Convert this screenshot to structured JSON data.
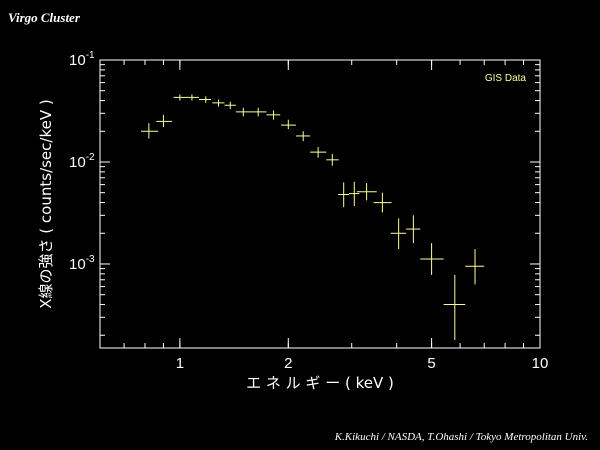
{
  "title": "Virgo Cluster",
  "credit": "K.Kikuchi / NASDA,   T.Ohashi / Tokyo Metropolitan Univ.",
  "colors": {
    "background": "#000000",
    "axes": "#ffffff",
    "data": "#ffff99"
  },
  "chart_data": {
    "type": "scatter",
    "title": "Virgo Cluster",
    "xlabel": "エ ネ ル ギ ー ( keV )",
    "ylabel": "X線の強さ ( counts/sec/keV )",
    "xscale": "log",
    "yscale": "log",
    "xlim": [
      0.6,
      10.0
    ],
    "ylim": [
      0.00015,
      0.1
    ],
    "x_ticks": [
      {
        "value": 1,
        "label": "1"
      },
      {
        "value": 2,
        "label": "2"
      },
      {
        "value": 5,
        "label": "5"
      },
      {
        "value": 10,
        "label": "10"
      }
    ],
    "y_ticks": [
      {
        "value": 0.1,
        "base": "10",
        "exp": "-1"
      },
      {
        "value": 0.01,
        "base": "10",
        "exp": "-2"
      },
      {
        "value": 0.001,
        "base": "10",
        "exp": "-3"
      }
    ],
    "legend": {
      "label": "GIS Data",
      "position": "top-right"
    },
    "grid": false,
    "series": [
      {
        "name": "GIS Data",
        "color": "#ffff99",
        "points": [
          {
            "x": 0.82,
            "y": 0.02,
            "xerr": [
              0.78,
              0.87
            ],
            "yerr": [
              0.017,
              0.024
            ]
          },
          {
            "x": 0.9,
            "y": 0.025,
            "xerr": [
              0.86,
              0.95
            ],
            "yerr": [
              0.022,
              0.029
            ]
          },
          {
            "x": 1.0,
            "y": 0.043,
            "xerr": [
              0.96,
              1.04
            ],
            "yerr": [
              0.04,
              0.046
            ]
          },
          {
            "x": 1.08,
            "y": 0.043,
            "xerr": [
              1.04,
              1.13
            ],
            "yerr": [
              0.04,
              0.046
            ]
          },
          {
            "x": 1.18,
            "y": 0.041,
            "xerr": [
              1.13,
              1.22
            ],
            "yerr": [
              0.038,
              0.044
            ]
          },
          {
            "x": 1.28,
            "y": 0.038,
            "xerr": [
              1.23,
              1.33
            ],
            "yerr": [
              0.035,
              0.041
            ]
          },
          {
            "x": 1.38,
            "y": 0.036,
            "xerr": [
              1.33,
              1.43
            ],
            "yerr": [
              0.033,
              0.039
            ]
          },
          {
            "x": 1.5,
            "y": 0.031,
            "xerr": [
              1.43,
              1.57
            ],
            "yerr": [
              0.028,
              0.034
            ]
          },
          {
            "x": 1.65,
            "y": 0.031,
            "xerr": [
              1.57,
              1.74
            ],
            "yerr": [
              0.028,
              0.034
            ]
          },
          {
            "x": 1.82,
            "y": 0.029,
            "xerr": [
              1.74,
              1.9
            ],
            "yerr": [
              0.026,
              0.032
            ]
          },
          {
            "x": 2.0,
            "y": 0.023,
            "xerr": [
              1.91,
              2.1
            ],
            "yerr": [
              0.021,
              0.026
            ]
          },
          {
            "x": 2.2,
            "y": 0.018,
            "xerr": [
              2.1,
              2.3
            ],
            "yerr": [
              0.016,
              0.02
            ]
          },
          {
            "x": 2.42,
            "y": 0.0125,
            "xerr": [
              2.3,
              2.55
            ],
            "yerr": [
              0.011,
              0.014
            ]
          },
          {
            "x": 2.65,
            "y": 0.0105,
            "xerr": [
              2.55,
              2.76
            ],
            "yerr": [
              0.0092,
              0.012
            ]
          },
          {
            "x": 2.85,
            "y": 0.0048,
            "xerr": [
              2.75,
              2.95
            ],
            "yerr": [
              0.0036,
              0.0063
            ]
          },
          {
            "x": 3.05,
            "y": 0.0049,
            "xerr": [
              2.95,
              3.15
            ],
            "yerr": [
              0.0037,
              0.0064
            ]
          },
          {
            "x": 3.3,
            "y": 0.0051,
            "xerr": [
              3.1,
              3.52
            ],
            "yerr": [
              0.0042,
              0.0062
            ]
          },
          {
            "x": 3.65,
            "y": 0.004,
            "xerr": [
              3.45,
              3.87
            ],
            "yerr": [
              0.0032,
              0.005
            ]
          },
          {
            "x": 4.05,
            "y": 0.002,
            "xerr": [
              3.85,
              4.25
            ],
            "yerr": [
              0.0014,
              0.0028
            ]
          },
          {
            "x": 4.45,
            "y": 0.0022,
            "xerr": [
              4.25,
              4.65
            ],
            "yerr": [
              0.0016,
              0.003
            ]
          },
          {
            "x": 5.0,
            "y": 0.00112,
            "xerr": [
              4.65,
              5.4
            ],
            "yerr": [
              0.00078,
              0.0016
            ]
          },
          {
            "x": 5.8,
            "y": 0.0004,
            "xerr": [
              5.4,
              6.2
            ],
            "yerr": [
              0.00018,
              0.00078
            ]
          },
          {
            "x": 6.6,
            "y": 0.00095,
            "xerr": [
              6.2,
              7.0
            ],
            "yerr": [
              0.00063,
              0.0014
            ]
          }
        ]
      }
    ]
  }
}
